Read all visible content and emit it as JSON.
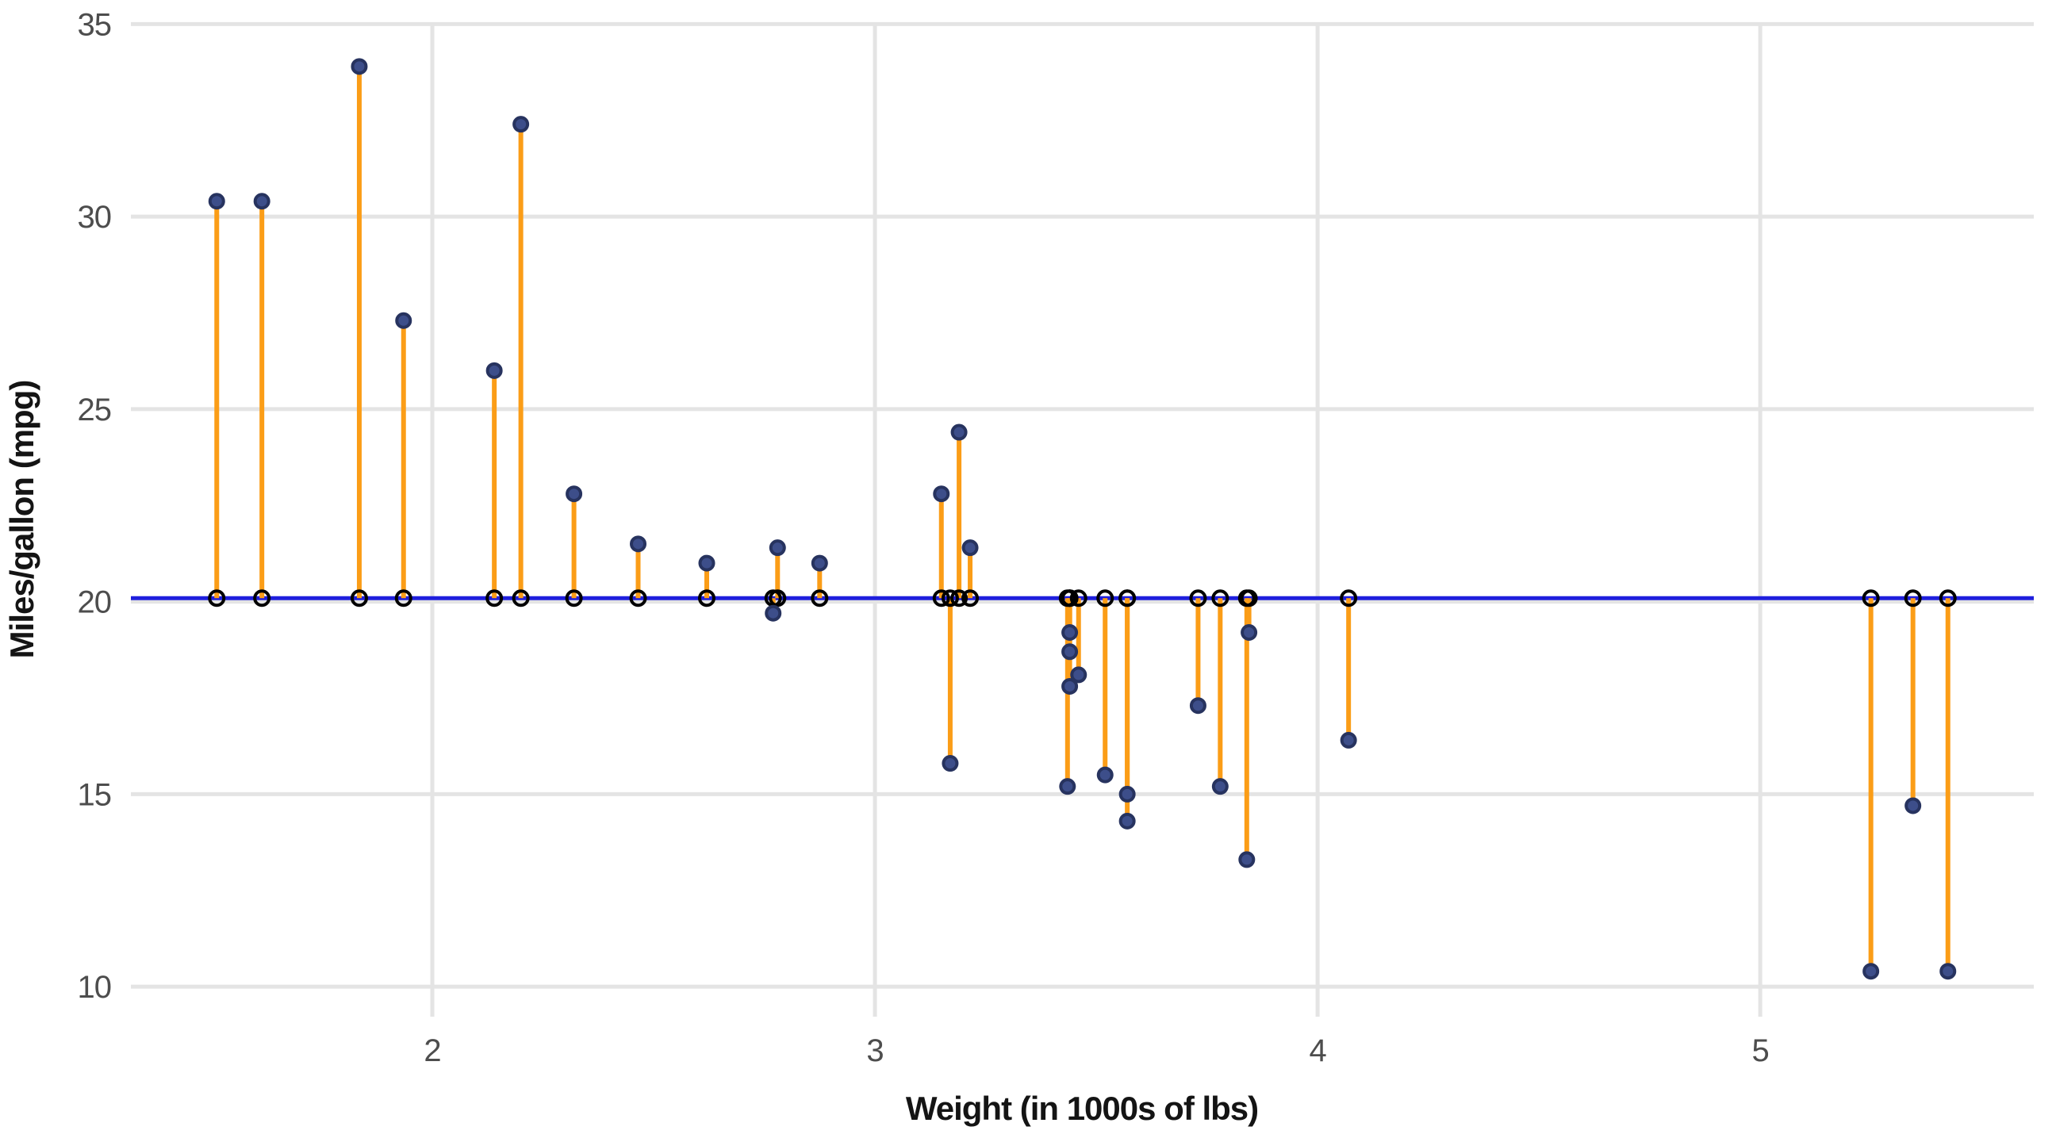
{
  "chart_data": {
    "type": "scatter",
    "variant": "residual-lollipop",
    "title": "",
    "xlabel": "Weight (in 1000s of lbs)",
    "ylabel": "Miles/gallon (mpg)",
    "x_ticks": [
      2,
      3,
      4,
      5
    ],
    "y_ticks": [
      10,
      15,
      20,
      25,
      30,
      35
    ],
    "xlim": [
      1.319,
      5.618
    ],
    "ylim": [
      9.22,
      35.05
    ],
    "grid": "major-only",
    "legend": "none",
    "mean_line": {
      "value": 20.09,
      "color": "#1f1fdd",
      "width": 5
    },
    "series": [
      {
        "name": "cars",
        "points": [
          [
            1.513,
            30.4
          ],
          [
            1.615,
            30.4
          ],
          [
            1.835,
            33.9
          ],
          [
            1.935,
            27.3
          ],
          [
            2.14,
            26.0
          ],
          [
            2.2,
            32.4
          ],
          [
            2.32,
            22.8
          ],
          [
            2.465,
            21.5
          ],
          [
            2.62,
            21.0
          ],
          [
            2.77,
            19.7
          ],
          [
            2.78,
            21.4
          ],
          [
            2.875,
            21.0
          ],
          [
            3.15,
            22.8
          ],
          [
            3.17,
            15.8
          ],
          [
            3.19,
            24.4
          ],
          [
            3.215,
            21.4
          ],
          [
            3.435,
            15.2
          ],
          [
            3.44,
            18.7
          ],
          [
            3.44,
            19.2
          ],
          [
            3.44,
            17.8
          ],
          [
            3.46,
            18.1
          ],
          [
            3.52,
            15.5
          ],
          [
            3.57,
            14.3
          ],
          [
            3.57,
            15.0
          ],
          [
            3.73,
            17.3
          ],
          [
            3.78,
            15.2
          ],
          [
            3.84,
            13.3
          ],
          [
            3.845,
            19.2
          ],
          [
            4.07,
            16.4
          ],
          [
            5.25,
            10.4
          ],
          [
            5.345,
            14.7
          ],
          [
            5.424,
            10.4
          ]
        ]
      }
    ],
    "styles": {
      "segment_color": "#fb9d17",
      "segment_width": 6,
      "point_fill": "#3d4e8a",
      "point_stroke": "#27335f",
      "point_radius": 8.5,
      "point_stroke_width": 4,
      "fitted_marker_shape": "open-circle",
      "fitted_marker_color": "#000000",
      "fitted_marker_radius": 9,
      "fitted_marker_stroke_width": 4,
      "gridline_color": "#e4e4e4",
      "gridline_width": 5,
      "tick_label_color": "#4d4d4d",
      "axis_title_color": "#141414",
      "background": "#ffffff"
    }
  }
}
